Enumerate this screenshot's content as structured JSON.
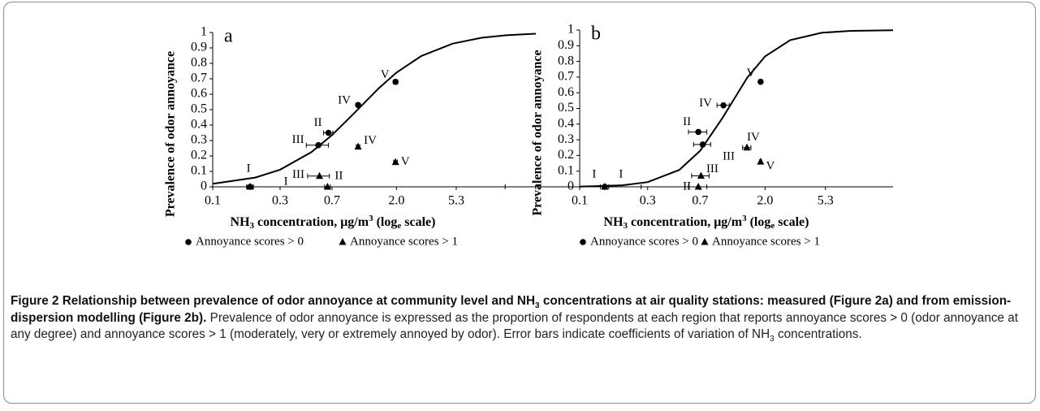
{
  "chart_data": [
    {
      "type": "scatter",
      "panel_label": "a",
      "y_label": "Prevalence of odor annoyance",
      "x_label": [
        "NH",
        "3",
        " concentration, μg/m",
        "3",
        " (log",
        "e",
        " scale)"
      ],
      "xscale": "log",
      "xlim": [
        0.1,
        19.4
      ],
      "xticks": [
        0.1,
        0.3,
        0.7,
        {
          "value": 2,
          "label": "2.0"
        },
        5.3
      ],
      "ylim": [
        0,
        1
      ],
      "yticks": [
        0,
        0.1,
        0.2,
        0.3,
        0.4,
        0.5,
        0.6,
        0.7,
        0.8,
        0.9,
        1
      ],
      "grid": false,
      "curve": {
        "color": "#000000",
        "x": [
          0.1,
          0.2,
          0.3,
          0.5,
          0.7,
          1,
          1.5,
          2,
          3,
          5,
          8,
          12,
          19.4
        ],
        "y": [
          0.02,
          0.06,
          0.111,
          0.225,
          0.335,
          0.476,
          0.639,
          0.74,
          0.848,
          0.928,
          0.966,
          0.982,
          0.992
        ]
      },
      "series": [
        {
          "name": "Annoyance scores > 0",
          "marker": "circle",
          "color": "#000000",
          "point_labels": [
            "I",
            "II",
            "III",
            "IV",
            "V"
          ],
          "x": [
            0.184,
            0.66,
            0.56,
            1.07,
            1.97
          ],
          "values": [
            0,
            0.35,
            0.27,
            0.53,
            0.68
          ],
          "xerr": [
            0.01,
            0.05,
            0.1,
            0.03,
            0.07
          ]
        },
        {
          "name": "Annoyance scores > 1",
          "marker": "triangle",
          "color": "#000000",
          "point_labels": [
            "I",
            "II",
            "III",
            "IV",
            "V"
          ],
          "x": [
            0.184,
            0.65,
            0.57,
            1.07,
            1.97
          ],
          "values": [
            0,
            0,
            0.07,
            0.26,
            0.16
          ],
          "xerr": [
            0.01,
            0.03,
            0.1,
            0.03,
            0.06
          ]
        }
      ]
    },
    {
      "type": "scatter",
      "panel_label": "b",
      "y_label": "Prevalence of odor annoyance",
      "x_label": [
        "NH",
        "3",
        " concentration,  μg/m",
        "3",
        " (log",
        "e",
        " scale)"
      ],
      "xscale": "log",
      "xlim": [
        0.1,
        15.8
      ],
      "xticks": [
        0.1,
        0.3,
        0.7,
        {
          "value": 2,
          "label": "2.0"
        },
        5.3
      ],
      "ylim": [
        0,
        1
      ],
      "yticks": [
        0,
        0.1,
        0.2,
        0.3,
        0.4,
        0.5,
        0.6,
        0.7,
        0.8,
        0.9,
        1
      ],
      "grid": false,
      "curve": {
        "color": "#000000",
        "x": [
          0.1,
          0.2,
          0.3,
          0.5,
          0.7,
          1,
          1.5,
          2,
          3,
          5,
          8,
          15.8
        ],
        "y": [
          0.0016,
          0.01,
          0.03,
          0.108,
          0.23,
          0.437,
          0.697,
          0.832,
          0.936,
          0.983,
          0.995,
          0.999
        ]
      },
      "series": [
        {
          "name": "Annoyance scores > 0",
          "marker": "circle",
          "color": "#000000",
          "point_labels": [
            "I",
            "II",
            "III",
            "IV",
            "V"
          ],
          "x": [
            0.15,
            0.68,
            0.73,
            1.02,
            1.86
          ],
          "values": [
            0,
            0.35,
            0.27,
            0.52,
            0.67
          ],
          "xerr": [
            0.12,
            0.1,
            0.1,
            0.1,
            0.03
          ]
        },
        {
          "name": "Annoyance scores > 1",
          "marker": "triangle",
          "color": "#000000",
          "point_labels": [
            "I",
            "II",
            "III",
            "IV",
            "V"
          ],
          "x": [
            0.15,
            0.68,
            0.71,
            1.49,
            1.86
          ],
          "values": [
            0,
            0,
            0.07,
            0.25,
            0.16
          ],
          "xerr": [
            0.01,
            0.1,
            0.1,
            0.1,
            0.03
          ]
        }
      ]
    }
  ],
  "caption": {
    "bold": [
      "Figure 2 Relationship between prevalence of odor annoyance at community level and NH",
      "3",
      " concentrations at air quality stations: measured (Figure 2a) and from emission-dispersion modelling (Figure 2b)."
    ],
    "text": [
      "Prevalence of odor annoyance is expressed as the proportion of respondents at each region that reports annoyance scores > 0 (odor annoyance at any degree) and annoyance scores > 1 (moderately, very or extremely annoyed by odor). Error bars indicate coefficients of variation of NH",
      "3",
      " concentrations."
    ]
  }
}
